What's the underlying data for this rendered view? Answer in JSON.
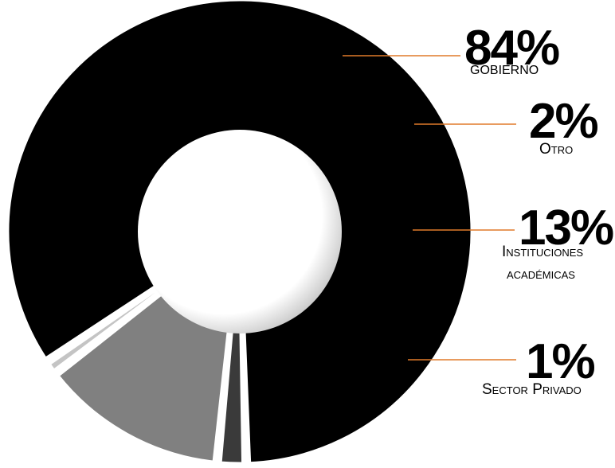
{
  "chart_data": {
    "type": "pie",
    "variant": "donut",
    "title": "",
    "categories": [
      "Gobierno",
      "Otro",
      "Instituciones académicas",
      "Sector Privado"
    ],
    "values": [
      84,
      2,
      13,
      1
    ],
    "value_labels": [
      "84%",
      "2%",
      "13%",
      "1%"
    ],
    "label_lines": [
      [
        "GOBIERNO"
      ],
      [
        "Otro"
      ],
      [
        "Instituciones",
        "académicas"
      ],
      [
        "Sector Privado"
      ]
    ],
    "colors": [
      "#000000",
      "#3a3a3a",
      "#808080",
      "#c4c4c4"
    ],
    "leader_color": "#e07a2a",
    "legend": "none"
  }
}
